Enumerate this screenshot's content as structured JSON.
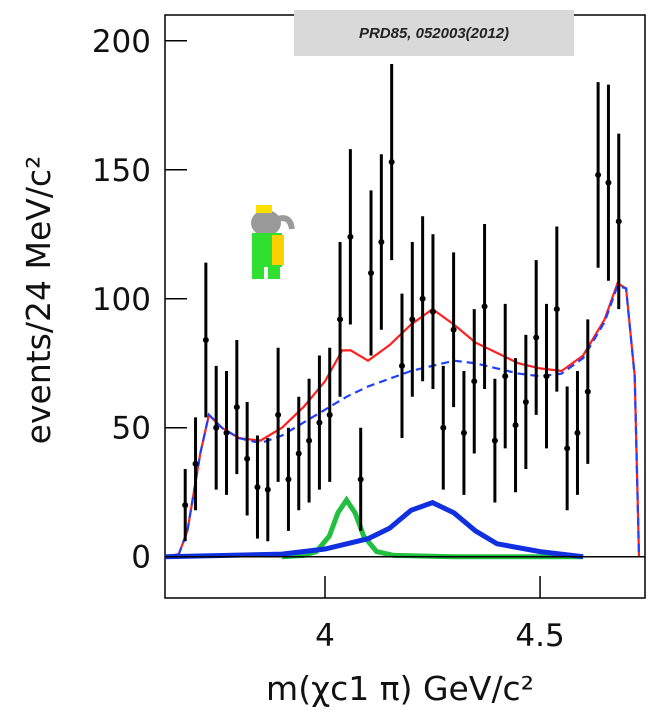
{
  "chart_data": {
    "type": "scatter",
    "annotation": "PRD85, 052003(2012)",
    "xlabel": "m(χc1 π) GeV/c²",
    "ylabel": "events/24 MeV/c²",
    "xlim": [
      3.628,
      4.744
    ],
    "ylim": [
      -16,
      210
    ],
    "xticks": [
      4,
      4.5
    ],
    "yticks": [
      0,
      50,
      100,
      150,
      200
    ],
    "points": {
      "color": "#000000",
      "x": [
        3.675,
        3.699,
        3.723,
        3.747,
        3.771,
        3.795,
        3.819,
        3.843,
        3.867,
        3.891,
        3.915,
        3.939,
        3.963,
        3.987,
        4.011,
        4.035,
        4.059,
        4.083,
        4.107,
        4.131,
        4.155,
        4.179,
        4.203,
        4.227,
        4.251,
        4.275,
        4.299,
        4.323,
        4.347,
        4.371,
        4.395,
        4.419,
        4.443,
        4.467,
        4.491,
        4.515,
        4.539,
        4.563,
        4.587,
        4.611,
        4.635,
        4.659,
        4.683
      ],
      "values": [
        20,
        36,
        84,
        50,
        48,
        58,
        38,
        27,
        26,
        55,
        30,
        40,
        45,
        52,
        55,
        92,
        124,
        30,
        110,
        122,
        153,
        74,
        92,
        100,
        95,
        50,
        88,
        48,
        68,
        97,
        45,
        70,
        51,
        60,
        85,
        70,
        96,
        42,
        48,
        64,
        148,
        145,
        130
      ],
      "errors": [
        14,
        18,
        30,
        24,
        24,
        26,
        22,
        20,
        20,
        26,
        20,
        22,
        24,
        26,
        26,
        30,
        34,
        20,
        32,
        34,
        38,
        28,
        30,
        32,
        30,
        24,
        30,
        24,
        28,
        32,
        24,
        28,
        26,
        26,
        30,
        28,
        32,
        24,
        24,
        28,
        36,
        38,
        34
      ]
    },
    "curves": [
      {
        "color": "#ff2020",
        "style": "solid",
        "x": [
          3.628,
          3.66,
          3.68,
          3.71,
          3.73,
          3.76,
          3.8,
          3.85,
          3.9,
          3.95,
          4.0,
          4.04,
          4.06,
          4.1,
          4.15,
          4.2,
          4.25,
          4.3,
          4.35,
          4.4,
          4.45,
          4.5,
          4.55,
          4.6,
          4.65,
          4.68,
          4.7,
          4.72,
          4.73
        ],
        "values": [
          0,
          1,
          10,
          40,
          55,
          50,
          46,
          45,
          50,
          58,
          68,
          80,
          80,
          76,
          82,
          90,
          96,
          90,
          83,
          79,
          75,
          73,
          72,
          78,
          92,
          106,
          104,
          70,
          0
        ]
      },
      {
        "color": "#2040ff",
        "style": "dashed",
        "x": [
          3.628,
          3.66,
          3.68,
          3.71,
          3.73,
          3.76,
          3.8,
          3.85,
          3.9,
          3.95,
          4.0,
          4.05,
          4.1,
          4.15,
          4.2,
          4.25,
          4.3,
          4.35,
          4.4,
          4.45,
          4.5,
          4.55,
          4.6,
          4.65,
          4.68,
          4.7,
          4.72,
          4.73
        ],
        "values": [
          0,
          1,
          10,
          40,
          55,
          50,
          46,
          44,
          47,
          52,
          57,
          62,
          66,
          69,
          72,
          74,
          76,
          75,
          73,
          71,
          70,
          71,
          77,
          91,
          105,
          104,
          70,
          0
        ]
      },
      {
        "color": "#22c040",
        "style": "thick",
        "x": [
          3.9,
          3.95,
          3.98,
          4.01,
          4.03,
          4.05,
          4.07,
          4.09,
          4.12,
          4.16,
          4.3,
          4.6
        ],
        "values": [
          0,
          0.5,
          2,
          8,
          17,
          22,
          17,
          8,
          2,
          0.5,
          0,
          0
        ]
      },
      {
        "color": "#1030e0",
        "style": "thick",
        "x": [
          3.628,
          3.9,
          4.0,
          4.1,
          4.15,
          4.2,
          4.25,
          4.3,
          4.35,
          4.4,
          4.5,
          4.6
        ],
        "values": [
          0,
          1,
          3,
          7,
          11,
          18,
          21,
          17,
          10,
          5,
          2,
          0
        ]
      }
    ]
  }
}
